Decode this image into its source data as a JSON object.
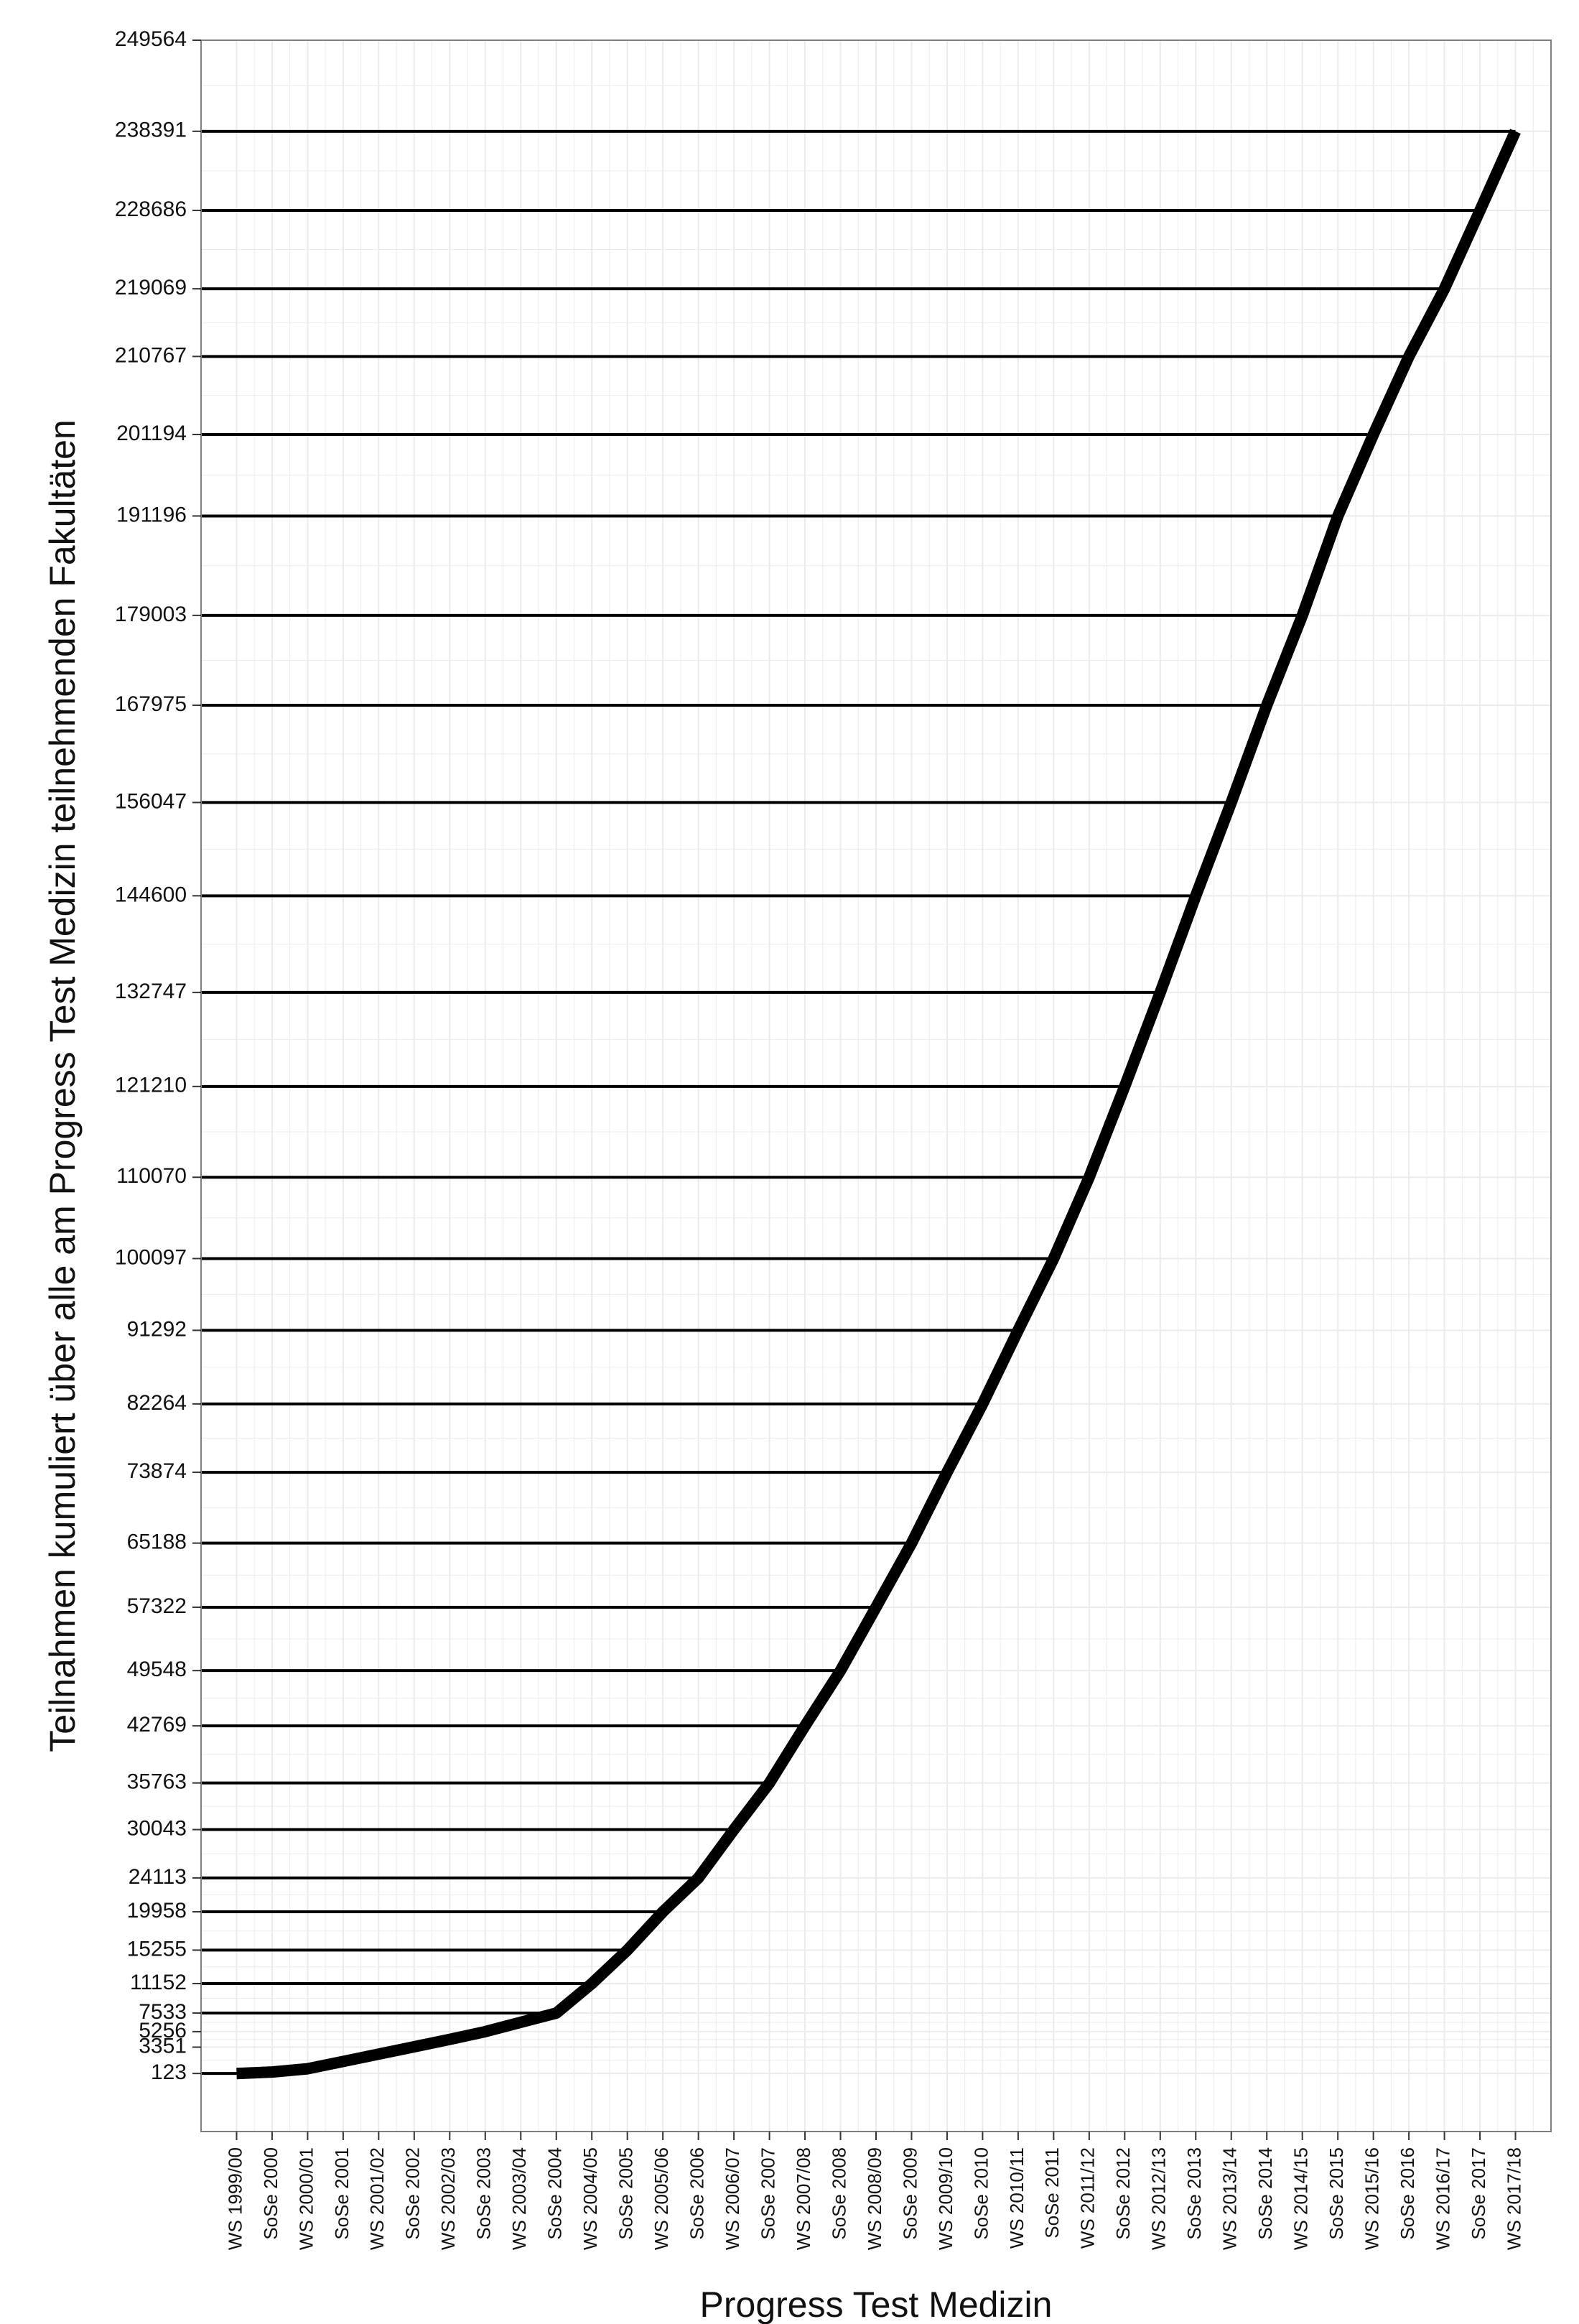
{
  "chart_data": {
    "type": "line",
    "title": "",
    "xlabel": "Progress Test Medizin",
    "ylabel": "Teilnahmen kumuliert über alle am Progress Test Medizin teilnehmenden Fakultäten",
    "ylim": [
      -7000,
      249564
    ],
    "grid": true,
    "legend": "none",
    "y_ticks": [
      123,
      3351,
      5256,
      7533,
      11152,
      15255,
      19958,
      24113,
      30043,
      35763,
      42769,
      49548,
      57322,
      65188,
      73874,
      82264,
      91292,
      100097,
      110070,
      121210,
      132747,
      144600,
      156047,
      167975,
      179003,
      191196,
      201194,
      210767,
      219069,
      228686,
      238391,
      249564
    ],
    "categories": [
      "WS 1999/00",
      "SoSe 2000",
      "WS 2000/01",
      "SoSe 2001",
      "WS 2001/02",
      "SoSe 2002",
      "WS 2002/03",
      "SoSe 2003",
      "WS 2003/04",
      "SoSe 2004",
      "WS 2004/05",
      "SoSe 2005",
      "WS 2005/06",
      "SoSe 2006",
      "WS 2006/07",
      "SoSe 2007",
      "WS 2007/08",
      "SoSe 2008",
      "WS 2008/09",
      "SoSe 2009",
      "WS 2009/10",
      "SoSe 2010",
      "WS 2010/11",
      "SoSe 2011",
      "WS 2011/12",
      "SoSe 2012",
      "WS 2012/13",
      "SoSe 2013",
      "WS 2013/14",
      "SoSe 2014",
      "WS 2014/15",
      "SoSe 2015",
      "WS 2015/16",
      "SoSe 2016",
      "WS 2016/17",
      "SoSe 2017",
      "WS 2017/18"
    ],
    "series": [
      {
        "values": [
          123,
          300,
          700,
          1600,
          2500,
          3400,
          4300,
          5256,
          6400,
          7533,
          11152,
          15255,
          19958,
          24113,
          30043,
          35763,
          42769,
          49548,
          57322,
          65188,
          73874,
          82264,
          91292,
          100097,
          110070,
          121210,
          132747,
          144600,
          156047,
          167975,
          179003,
          191196,
          201194,
          210767,
          219069,
          228686,
          238391
        ]
      }
    ],
    "reference_lines": [
      123,
      7533,
      11152,
      15255,
      19958,
      24113,
      30043,
      35763,
      42769,
      49548,
      57322,
      65188,
      73874,
      82264,
      91292,
      100097,
      110070,
      121210,
      132747,
      144600,
      156047,
      167975,
      179003,
      191196,
      201194,
      210767,
      219069,
      228686,
      238391
    ],
    "colors": {
      "line": "#000000",
      "grid": "#ebebeb",
      "panel_border": "#7f7f7f",
      "background": "#ffffff"
    }
  }
}
